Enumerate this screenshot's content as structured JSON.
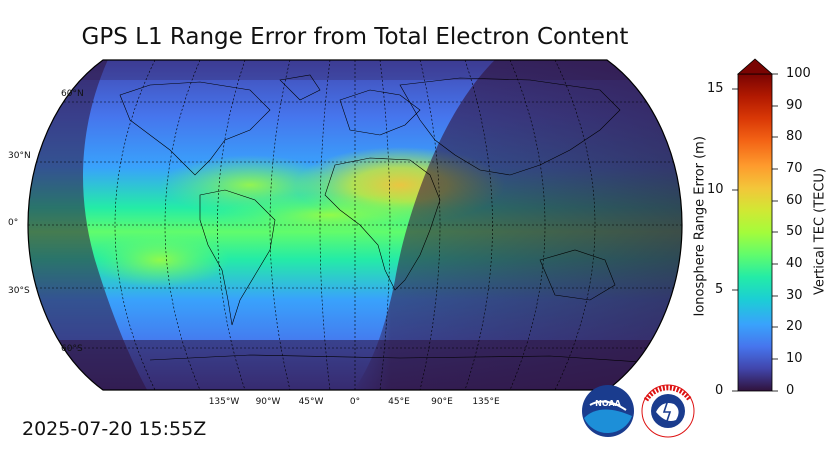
{
  "title": "GPS L1 Range Error from Total Electron Content",
  "timestamp": "2025-07-20 15:55Z",
  "map": {
    "projection": "robinson",
    "lat_labels": [
      "60°N",
      "30°N",
      "0°",
      "30°S",
      "60°S"
    ],
    "lon_labels": [
      "135°W",
      "90°W",
      "45°W",
      "0°",
      "45°E",
      "90°E",
      "135°E"
    ]
  },
  "colorbar": {
    "left_axis_label": "Ionosphere Range Error (m)",
    "right_axis_label": "Vertical TEC (TECU)",
    "range_error_ticks": [
      "15",
      "10",
      "5",
      "0"
    ],
    "tec_ticks": [
      "100",
      "90",
      "80",
      "70",
      "60",
      "50",
      "40",
      "30",
      "20",
      "10",
      "0"
    ],
    "extend": "max",
    "colormap": [
      "#30123b",
      "#4145ab",
      "#4675ed",
      "#39a2fc",
      "#1bcfd4",
      "#24eca6",
      "#61fc6c",
      "#a4fc3b",
      "#d1e834",
      "#f3c63a",
      "#fe9b2d",
      "#f36315",
      "#d93806",
      "#b11901",
      "#7a0402"
    ]
  },
  "logos": {
    "noaa_text": "NOAA",
    "nws_text": "NATIONAL WEATHER SERVICE"
  }
}
